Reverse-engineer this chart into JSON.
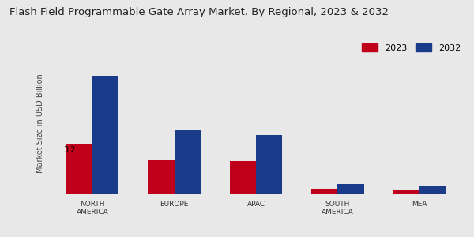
{
  "title": "Flash Field Programmable Gate Array Market, By Regional, 2023 & 2032",
  "categories": [
    "NORTH\nAMERICA",
    "EUROPE",
    "APAC",
    "SOUTH\nAMERICA",
    "MEA"
  ],
  "values_2023": [
    3.2,
    2.2,
    2.1,
    0.35,
    0.28
  ],
  "values_2032": [
    7.5,
    4.1,
    3.75,
    0.65,
    0.55
  ],
  "color_2023": "#c0001a",
  "color_2032": "#1a3a8a",
  "ylabel": "Market Size in USD Billion",
  "annotation_text": "3.2",
  "background_color": "#e8e8e8",
  "bar_width": 0.32,
  "legend_labels": [
    "2023",
    "2032"
  ],
  "ylim": [
    0,
    9
  ],
  "bottom_stripe_color": "#c0001a",
  "title_fontsize": 9.5,
  "tick_fontsize": 6.5,
  "ylabel_fontsize": 7
}
